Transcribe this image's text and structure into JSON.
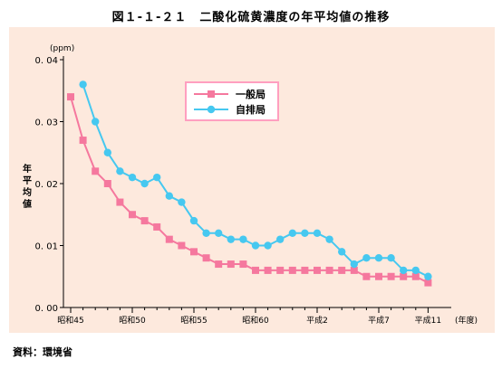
{
  "figure_title": "図１-１-２１　二酸化硫黄濃度の年平均値の推移",
  "source": "資料：環境省",
  "colors": {
    "panel_background": "#fde9dd",
    "series_general": "#f5789e",
    "series_roadside": "#46c8f0"
  },
  "chart_data": {
    "type": "line",
    "title": "二酸化硫黄濃度の年平均値の推移",
    "unit_label": "(ppm)",
    "ylabel": "年平均値",
    "xlabel_suffix": "(年度)",
    "ylim": [
      0,
      0.04
    ],
    "y_ticks": [
      "0. 04",
      "0. 03",
      "0. 02",
      "0. 01",
      "0. 00"
    ],
    "y_tick_values": [
      0.04,
      0.03,
      0.02,
      0.01,
      0.0
    ],
    "x_labels": [
      "昭和45",
      "昭和50",
      "昭和55",
      "昭和60",
      "平成2",
      "平成7",
      "平成11"
    ],
    "x_label_index": [
      0,
      5,
      10,
      15,
      20,
      25,
      29
    ],
    "x": [
      "昭和45",
      "昭和46",
      "昭和47",
      "昭和48",
      "昭和49",
      "昭和50",
      "昭和51",
      "昭和52",
      "昭和53",
      "昭和54",
      "昭和55",
      "昭和56",
      "昭和57",
      "昭和58",
      "昭和59",
      "昭和60",
      "昭和61",
      "昭和62",
      "昭和63",
      "平成元",
      "平成2",
      "平成3",
      "平成4",
      "平成5",
      "平成6",
      "平成7",
      "平成8",
      "平成9",
      "平成10",
      "平成11"
    ],
    "grid": false,
    "legend_position": "top-center",
    "series": [
      {
        "name": "一般局",
        "color": "#f5789e",
        "marker": "square",
        "values": [
          0.034,
          0.027,
          0.022,
          0.02,
          0.017,
          0.015,
          0.014,
          0.013,
          0.011,
          0.01,
          0.009,
          0.008,
          0.007,
          0.007,
          0.007,
          0.006,
          0.006,
          0.006,
          0.006,
          0.006,
          0.006,
          0.006,
          0.006,
          0.006,
          0.005,
          0.005,
          0.005,
          0.005,
          0.005,
          0.004
        ]
      },
      {
        "name": "自排局",
        "color": "#46c8f0",
        "marker": "circle",
        "values": [
          null,
          0.036,
          0.03,
          0.025,
          0.022,
          0.021,
          0.02,
          0.021,
          0.018,
          0.017,
          0.014,
          0.012,
          0.012,
          0.011,
          0.011,
          0.01,
          0.01,
          0.011,
          0.012,
          0.012,
          0.012,
          0.011,
          0.009,
          0.007,
          0.008,
          0.008,
          0.008,
          0.006,
          0.006,
          0.005
        ]
      }
    ]
  }
}
